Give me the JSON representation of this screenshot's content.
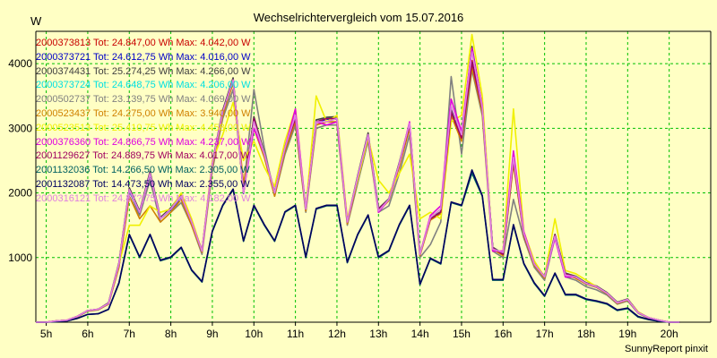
{
  "chart_data": {
    "type": "line",
    "title": "Wechselrichtervergleich vom 15.07.2016",
    "y_unit": "W",
    "footer": "SunnyReport pinxit",
    "x_ticks": [
      "5h",
      "6h",
      "7h",
      "8h",
      "9h",
      "10h",
      "11h",
      "12h",
      "13h",
      "14h",
      "15h",
      "16h",
      "17h",
      "18h",
      "19h",
      "20h"
    ],
    "xlim": [
      4.75,
      21.0
    ],
    "ylim": [
      0,
      4500
    ],
    "y_ticks": [
      1000,
      2000,
      3000,
      4000
    ],
    "grid": true,
    "legend_position": "top-left",
    "x": [
      4.75,
      5.0,
      5.25,
      5.5,
      5.75,
      6.0,
      6.25,
      6.5,
      6.75,
      7.0,
      7.25,
      7.5,
      7.75,
      8.0,
      8.25,
      8.5,
      8.75,
      9.0,
      9.25,
      9.5,
      9.75,
      10.0,
      10.25,
      10.5,
      10.75,
      11.0,
      11.25,
      11.5,
      11.75,
      12.0,
      12.25,
      12.5,
      12.75,
      13.0,
      13.25,
      13.5,
      13.75,
      14.0,
      14.25,
      14.5,
      14.75,
      15.0,
      15.25,
      15.5,
      15.75,
      16.0,
      16.25,
      16.5,
      16.75,
      17.0,
      17.25,
      17.5,
      17.75,
      18.0,
      18.25,
      18.5,
      18.75,
      19.0,
      19.25,
      19.5,
      19.75,
      20.0,
      20.25
    ],
    "series": [
      {
        "name": "2000373813",
        "label": "2000373813  Tot: 24.847,00 Wh  Max: 4.042,00 W",
        "color": "#c80000",
        "values": [
          0,
          0,
          20,
          30,
          90,
          180,
          200,
          290,
          900,
          2050,
          1700,
          2300,
          1600,
          1750,
          1950,
          1550,
          1100,
          2450,
          3250,
          3750,
          2000,
          3150,
          2600,
          2000,
          2700,
          3150,
          1750,
          3100,
          3150,
          3150,
          1550,
          2250,
          2900,
          1750,
          1900,
          2450,
          3050,
          1050,
          1600,
          1700,
          3250,
          2850,
          4050,
          3300,
          1150,
          1050,
          2500,
          1350,
          900,
          700,
          1350,
          750,
          700,
          600,
          550,
          450,
          300,
          350,
          150,
          70,
          30,
          0,
          0
        ]
      },
      {
        "name": "2000373721",
        "label": "2000373721  Tot: 24.612,75 Wh  Max: 4.016,00 W",
        "color": "#0000c8",
        "values": [
          0,
          0,
          20,
          30,
          90,
          180,
          200,
          290,
          880,
          2030,
          1690,
          2280,
          1600,
          1740,
          1930,
          1550,
          1090,
          2440,
          3230,
          3730,
          1990,
          3130,
          2590,
          1990,
          2690,
          3140,
          1740,
          3090,
          3140,
          3140,
          1540,
          2240,
          2890,
          1740,
          1890,
          2440,
          3040,
          1050,
          1590,
          1690,
          3240,
          2840,
          4020,
          3290,
          1150,
          1040,
          2490,
          1340,
          890,
          690,
          1340,
          740,
          690,
          590,
          540,
          440,
          300,
          340,
          150,
          70,
          30,
          0,
          0
        ]
      },
      {
        "name": "2000374431",
        "label": "2000374431  Tot: 25.274,25 Wh  Max: 4.266,00 W",
        "color": "#404040",
        "values": [
          0,
          0,
          20,
          30,
          90,
          180,
          200,
          300,
          920,
          2080,
          1720,
          2330,
          1620,
          1770,
          1980,
          1560,
          1110,
          2470,
          3280,
          3780,
          2010,
          3180,
          2620,
          2010,
          2720,
          3180,
          1760,
          3130,
          3170,
          3180,
          1560,
          2270,
          2930,
          1760,
          1910,
          2470,
          3080,
          1060,
          1610,
          1710,
          3280,
          2880,
          4266,
          3330,
          1160,
          1060,
          2520,
          1360,
          910,
          710,
          1360,
          760,
          710,
          610,
          560,
          460,
          310,
          360,
          160,
          70,
          30,
          0,
          0
        ]
      },
      {
        "name": "2000373724",
        "label": "2000373724  Tot: 24.648,75 Wh  Max: 4.206,00 W",
        "color": "#00e0e0",
        "values": [
          0,
          0,
          20,
          30,
          90,
          180,
          200,
          290,
          890,
          2040,
          1700,
          2290,
          1600,
          1750,
          1940,
          1550,
          1100,
          2450,
          3240,
          3740,
          2000,
          3140,
          2600,
          2000,
          2700,
          3150,
          1750,
          3100,
          3150,
          3150,
          1550,
          2250,
          2900,
          1750,
          1900,
          2450,
          3050,
          1050,
          1600,
          1700,
          3250,
          2850,
          4206,
          3300,
          1150,
          1050,
          2500,
          1350,
          900,
          700,
          1350,
          750,
          700,
          600,
          550,
          450,
          300,
          350,
          150,
          70,
          30,
          0,
          0
        ]
      },
      {
        "name": "2000502737",
        "label": "2000502737  Tot: 23.139,75 Wh  Max: 4.069,00 W",
        "color": "#808080",
        "values": [
          0,
          0,
          20,
          30,
          80,
          170,
          190,
          280,
          850,
          1950,
          1650,
          2200,
          1550,
          1700,
          1850,
          1500,
          1050,
          2350,
          3150,
          3600,
          2050,
          3600,
          2700,
          1950,
          2600,
          3050,
          1700,
          3000,
          3050,
          3050,
          1500,
          2150,
          2800,
          1700,
          1800,
          2300,
          2900,
          1000,
          1200,
          1550,
          3800,
          2600,
          3900,
          3200,
          1100,
          1000,
          1900,
          1300,
          850,
          650,
          1300,
          700,
          650,
          550,
          500,
          420,
          280,
          330,
          140,
          60,
          25,
          0,
          0
        ]
      },
      {
        "name": "2000523437",
        "label": "2000523437  Tot: 24.275,00 Wh  Max: 3.940,00 W",
        "color": "#d08000",
        "values": [
          0,
          0,
          20,
          30,
          85,
          175,
          195,
          280,
          850,
          1950,
          1600,
          1800,
          1550,
          1700,
          1900,
          1500,
          1080,
          2400,
          3200,
          3700,
          2150,
          3000,
          2550,
          1950,
          2650,
          3100,
          1720,
          3050,
          3100,
          3100,
          1520,
          2200,
          2850,
          1720,
          1880,
          2400,
          3000,
          1030,
          1580,
          1680,
          3200,
          2800,
          3940,
          3250,
          1130,
          1030,
          2450,
          1330,
          880,
          680,
          1330,
          740,
          680,
          590,
          540,
          440,
          290,
          340,
          150,
          65,
          28,
          0,
          0
        ]
      },
      {
        "name": "2000523513",
        "label": "2000523513  Tot: 25.410,75 Wh  Max: 4.458,00 W",
        "color": "#f0f000",
        "values": [
          0,
          0,
          20,
          30,
          90,
          180,
          200,
          290,
          900,
          1500,
          1500,
          1800,
          1700,
          1750,
          2000,
          1600,
          1100,
          2500,
          2900,
          3400,
          2500,
          2800,
          2400,
          2100,
          2800,
          3300,
          1750,
          3500,
          3100,
          3200,
          1600,
          2200,
          2850,
          2200,
          2000,
          2300,
          2600,
          1600,
          1700,
          1600,
          3100,
          3200,
          4450,
          3500,
          1100,
          1100,
          3300,
          1400,
          950,
          700,
          1600,
          800,
          750,
          650,
          550,
          450,
          300,
          350,
          160,
          70,
          30,
          0,
          0
        ]
      },
      {
        "name": "2000376360",
        "label": "2000376360  Tot: 24.866,75 Wh  Max: 4.237,00 W",
        "color": "#e000e0",
        "values": [
          0,
          0,
          20,
          30,
          90,
          180,
          200,
          290,
          900,
          2050,
          1700,
          2300,
          1600,
          1750,
          1950,
          1550,
          1100,
          2450,
          3250,
          3750,
          2000,
          3000,
          2600,
          2000,
          2700,
          3300,
          1750,
          3100,
          3050,
          3100,
          1550,
          2250,
          2900,
          1700,
          1900,
          2450,
          3100,
          1050,
          1650,
          1800,
          3450,
          2950,
          4237,
          3350,
          1100,
          1100,
          2650,
          1400,
          900,
          700,
          1300,
          700,
          700,
          600,
          550,
          450,
          300,
          350,
          150,
          70,
          30,
          0,
          0
        ]
      },
      {
        "name": "2001129627",
        "label": "2001129627  Tot: 24.889,75 Wh  Max: 4.017,00 W",
        "color": "#a00060",
        "values": [
          0,
          0,
          20,
          30,
          90,
          180,
          200,
          290,
          900,
          2050,
          1700,
          2300,
          1600,
          1750,
          1950,
          1550,
          1100,
          2450,
          3250,
          3750,
          2000,
          3150,
          2600,
          2000,
          2700,
          3150,
          1750,
          3100,
          3150,
          3150,
          1550,
          2250,
          2900,
          1750,
          1900,
          2450,
          3050,
          1050,
          1600,
          1700,
          3250,
          2850,
          4017,
          3300,
          1150,
          1050,
          2500,
          1350,
          900,
          700,
          1350,
          750,
          700,
          600,
          550,
          450,
          300,
          350,
          150,
          70,
          30,
          0,
          0
        ]
      },
      {
        "name": "2001132036",
        "label": "2001132036  Tot: 14.266,50 Wh  Max: 2.305,00 W",
        "color": "#006060",
        "values": [
          0,
          0,
          10,
          20,
          60,
          120,
          130,
          200,
          600,
          1350,
          1000,
          1350,
          950,
          1000,
          1150,
          800,
          620,
          1400,
          1800,
          2050,
          1250,
          1800,
          1500,
          1250,
          1700,
          1800,
          1000,
          1750,
          1800,
          1800,
          920,
          1350,
          1650,
          1000,
          1100,
          1500,
          1800,
          580,
          980,
          900,
          1850,
          1800,
          2305,
          1950,
          650,
          650,
          1500,
          900,
          600,
          400,
          750,
          420,
          420,
          350,
          320,
          280,
          180,
          210,
          80,
          40,
          15,
          0,
          0
        ]
      },
      {
        "name": "2001132087",
        "label": "2001132087  Tot: 14.473,50 Wh  Max: 2.355,00 W",
        "color": "#000060",
        "values": [
          0,
          0,
          10,
          20,
          60,
          120,
          130,
          200,
          610,
          1360,
          1010,
          1360,
          960,
          1010,
          1160,
          810,
          630,
          1410,
          1810,
          2060,
          1260,
          1810,
          1510,
          1260,
          1710,
          1810,
          1010,
          1760,
          1810,
          1810,
          930,
          1360,
          1660,
          1010,
          1110,
          1510,
          1810,
          590,
          990,
          910,
          1860,
          1810,
          2355,
          1960,
          660,
          660,
          1510,
          910,
          610,
          410,
          760,
          430,
          430,
          360,
          330,
          290,
          190,
          220,
          90,
          45,
          18,
          0,
          0
        ]
      },
      {
        "name": "2000316121",
        "label": "2000316121  Tot: 24.87?,75 Wh  Max: 4.182,00 W",
        "color": "#e080e0",
        "values": [
          0,
          0,
          20,
          30,
          90,
          180,
          200,
          290,
          900,
          2050,
          1700,
          2300,
          1600,
          1750,
          1950,
          1550,
          1100,
          2450,
          3250,
          3750,
          2000,
          3100,
          2600,
          2000,
          2700,
          3200,
          1750,
          3100,
          3100,
          3150,
          1550,
          2250,
          2900,
          1720,
          1900,
          2450,
          3080,
          1050,
          1620,
          1750,
          3350,
          2900,
          4182,
          3320,
          1130,
          1080,
          2550,
          1370,
          900,
          700,
          1330,
          730,
          700,
          600,
          550,
          450,
          300,
          350,
          150,
          70,
          30,
          0,
          0
        ]
      }
    ]
  }
}
